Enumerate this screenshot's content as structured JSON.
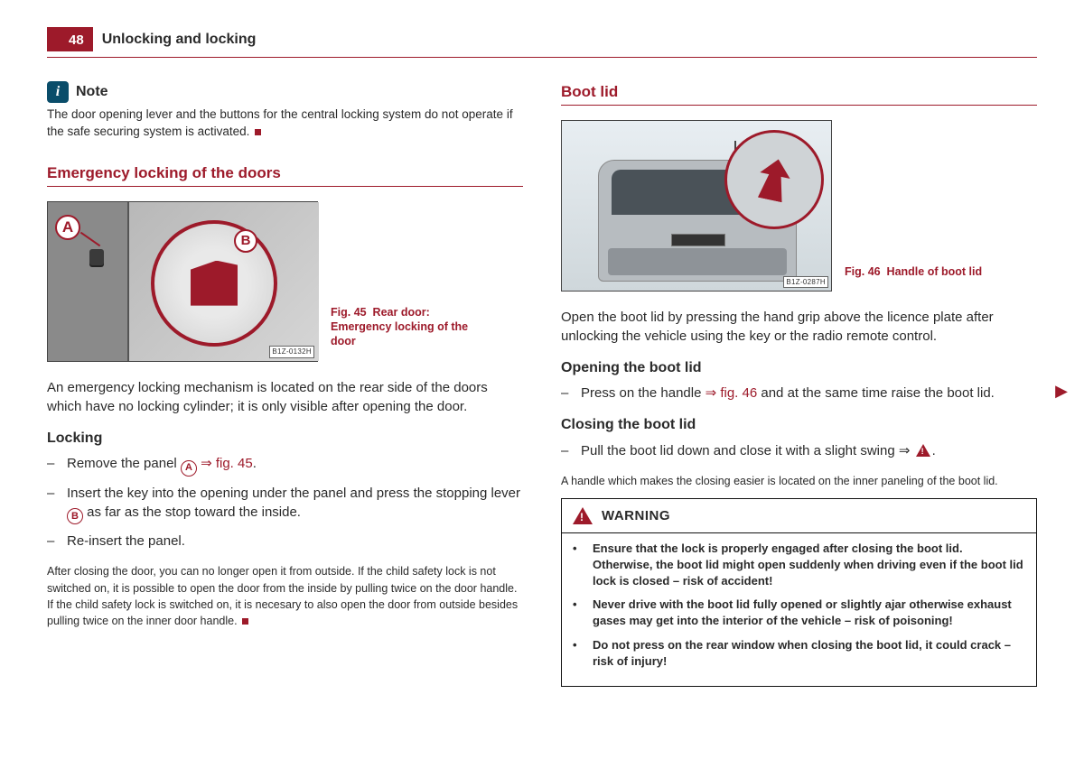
{
  "page_number": "48",
  "header_title": "Unlocking and locking",
  "colors": {
    "accent": "#9d1a2a",
    "info_icon_bg": "#0a4d6a",
    "text": "#2a2a2a"
  },
  "left": {
    "note": {
      "label": "Note",
      "text": "The door opening lever and the buttons for the central locking system do not operate if the safe securing system is activated."
    },
    "section_title": "Emergency locking of the doors",
    "fig45": {
      "id": "B1Z-0132H",
      "caption_a": "Fig. 45",
      "caption_b": "Rear door: Emergency locking of the door",
      "label_a": "A",
      "label_b": "B"
    },
    "para1": "An emergency locking mechanism is located on the rear side of the doors which have no locking cylinder; it is only visible after opening the door.",
    "locking_h": "Locking",
    "step1_a": "Remove the panel ",
    "step1_ref": " ⇒ fig. 45",
    "step1_c": ".",
    "step2_a": "Insert the key into the opening under the panel and press the stopping lever ",
    "step2_c": " as far as the stop toward the inside.",
    "step3": "Re-insert the panel.",
    "para2": "After closing the door, you can no longer open it from outside. If the child safety lock is not switched on, it is possible to open the door from the inside by pulling twice on the door handle. If the child safety lock is switched on, it is necesary to also open the door from outside besides pulling twice on the inner door handle."
  },
  "right": {
    "section_title": "Boot lid",
    "fig46": {
      "id": "B1Z-0287H",
      "caption_a": "Fig. 46",
      "caption_b": "Handle of boot lid"
    },
    "para1": "Open the boot lid by pressing the hand grip above the licence plate after unlocking the vehicle using the key or the radio remote control.",
    "opening_h": "Opening the boot lid",
    "open_step_a": "Press on the handle ",
    "open_step_ref": "⇒ fig. 46",
    "open_step_c": " and at the same time raise the boot lid.",
    "closing_h": "Closing the boot lid",
    "close_step_a": "Pull the boot lid down and close it with a slight swing ⇒ ",
    "close_step_c": ".",
    "para2": "A handle which makes the closing easier is located on the inner paneling of the boot lid.",
    "warning": {
      "title": "WARNING",
      "b1": "Ensure that the lock is properly engaged after closing the boot lid. Otherwise, the boot lid might open suddenly when driving even if the boot lid lock is closed – risk of accident!",
      "b2": "Never drive with the boot lid fully opened or slightly ajar otherwise exhaust gases may get into the interior of the vehicle – risk of poisoning!",
      "b3": "Do not press on the rear window when closing the boot lid, it could crack – risk of injury!"
    }
  }
}
